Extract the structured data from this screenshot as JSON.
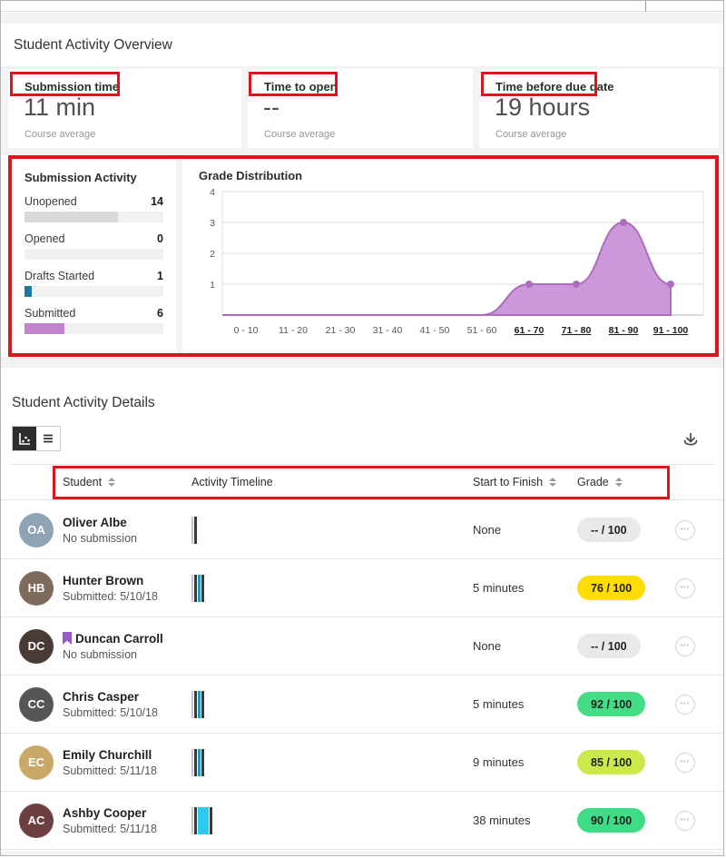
{
  "colors": {
    "annotation_red": "#e2121b",
    "purple_area": "#c98fd6",
    "purple_line": "#ad6cbd",
    "drafts_blue": "#1d7a9e",
    "submitted_purple": "#c483cf",
    "flag_purple": "#9a5bc9"
  },
  "icons": {
    "ellipsis_glyph": "•••"
  },
  "overview": {
    "title": "Student Activity Overview",
    "stats": [
      {
        "label": "Submission time",
        "value": "11 min",
        "caption": "Course average"
      },
      {
        "label": "Time to open",
        "value": "--",
        "caption": "Course average"
      },
      {
        "label": "Time before due date",
        "value": "19 hours",
        "caption": "Course average"
      }
    ]
  },
  "submission_activity": {
    "title": "Submission Activity",
    "items": [
      {
        "label": "Unopened",
        "value": "14",
        "pct": 67,
        "color": "#d9d9d9"
      },
      {
        "label": "Opened",
        "value": "0",
        "pct": 0,
        "color": "#d9d9d9"
      },
      {
        "label": "Drafts Started",
        "value": "1",
        "pct": 5,
        "color": "#1d7a9e"
      },
      {
        "label": "Submitted",
        "value": "6",
        "pct": 29,
        "color": "#c483cf"
      }
    ]
  },
  "chart_data": {
    "type": "area",
    "title": "Grade Distribution",
    "categories": [
      "0 - 10",
      "11 - 20",
      "21 - 30",
      "31 - 40",
      "41 - 50",
      "51 - 60",
      "61 - 70",
      "71 - 80",
      "81 - 90",
      "91 - 100"
    ],
    "values": [
      0,
      0,
      0,
      0,
      0,
      0,
      1,
      1,
      3,
      1
    ],
    "xlabel": "",
    "ylabel": "",
    "ylim": [
      0,
      4
    ],
    "yticks": [
      1,
      2,
      3,
      4
    ],
    "grid": true,
    "linked_categories": [
      "61 - 70",
      "71 - 80",
      "81 - 90",
      "91 - 100"
    ],
    "area_color": "#c98fd6",
    "line_color": "#ad6cbd"
  },
  "details": {
    "title": "Student Activity Details",
    "columns": [
      {
        "label": "Student",
        "sortable": true
      },
      {
        "label": "Activity Timeline",
        "sortable": false
      },
      {
        "label": "Start to Finish",
        "sortable": true
      },
      {
        "label": "Grade",
        "sortable": true
      }
    ],
    "rows": [
      {
        "name": "Oliver Albe",
        "sub": "No submission",
        "flagged": false,
        "initials": "OA",
        "avatar_color": "#8fa3b5",
        "timeline": [
          {
            "color": "#c4c4c4",
            "width": 2
          },
          {
            "color": "#3a3a3a",
            "width": 3
          }
        ],
        "start_to_finish": "None",
        "grade": {
          "text": "-- / 100",
          "bg": "#e9e9e9"
        }
      },
      {
        "name": "Hunter Brown",
        "sub": "Submitted: 5/10/18",
        "flagged": false,
        "initials": "HB",
        "avatar_color": "#7d6b5e",
        "timeline": [
          {
            "color": "#c4c4c4",
            "width": 2
          },
          {
            "color": "#3a3a3a",
            "width": 3
          },
          {
            "color": "#1f9bbf",
            "width": 3
          },
          {
            "color": "#3a3a3a",
            "width": 3
          }
        ],
        "start_to_finish": "5 minutes",
        "grade": {
          "text": "76 / 100",
          "bg": "#ffdd00"
        }
      },
      {
        "name": "Duncan Carroll",
        "sub": "No submission",
        "flagged": true,
        "initials": "DC",
        "avatar_color": "#4a3a35",
        "timeline": [],
        "start_to_finish": "None",
        "grade": {
          "text": "-- / 100",
          "bg": "#e9e9e9"
        }
      },
      {
        "name": "Chris Casper",
        "sub": "Submitted: 5/10/18",
        "flagged": false,
        "initials": "CC",
        "avatar_color": "#565656",
        "timeline": [
          {
            "color": "#c4c4c4",
            "width": 2
          },
          {
            "color": "#3a3a3a",
            "width": 3
          },
          {
            "color": "#1f9bbf",
            "width": 3
          },
          {
            "color": "#3a3a3a",
            "width": 3
          }
        ],
        "start_to_finish": "5 minutes",
        "grade": {
          "text": "92 / 100",
          "bg": "#44dd86"
        }
      },
      {
        "name": "Emily Churchill",
        "sub": "Submitted: 5/11/18",
        "flagged": false,
        "initials": "EC",
        "avatar_color": "#c9a86a",
        "timeline": [
          {
            "color": "#c4c4c4",
            "width": 2
          },
          {
            "color": "#3a3a3a",
            "width": 3
          },
          {
            "color": "#1f9bbf",
            "width": 3
          },
          {
            "color": "#3a3a3a",
            "width": 3
          }
        ],
        "start_to_finish": "9 minutes",
        "grade": {
          "text": "85 / 100",
          "bg": "#cbe94b"
        }
      },
      {
        "name": "Ashby Cooper",
        "sub": "Submitted: 5/11/18",
        "flagged": false,
        "initials": "AC",
        "avatar_color": "#6e3f42",
        "timeline": [
          {
            "color": "#c4c4c4",
            "width": 2
          },
          {
            "color": "#3a3a3a",
            "width": 3
          },
          {
            "color": "#2ec9ef",
            "width": 12
          },
          {
            "color": "#3a3a3a",
            "width": 3
          }
        ],
        "start_to_finish": "38 minutes",
        "grade": {
          "text": "90 / 100",
          "bg": "#3edc85"
        }
      }
    ]
  }
}
